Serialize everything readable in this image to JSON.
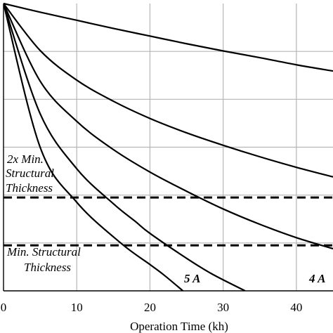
{
  "chart_data": {
    "type": "line",
    "title": "",
    "xlabel": "Operation Time (kh)",
    "ylabel": "",
    "xlim": [
      0,
      45
    ],
    "ylim": [
      0,
      6
    ],
    "x_ticks": [
      0,
      10,
      20,
      30,
      40
    ],
    "x_tick_labels": [
      "0",
      "10",
      "20",
      "30",
      "40"
    ],
    "grid": true,
    "series": [
      {
        "values": [
          [
            0,
            6.0
          ],
          [
            5,
            5.82
          ],
          [
            10,
            5.65
          ],
          [
            15,
            5.48
          ],
          [
            20,
            5.32
          ],
          [
            25,
            5.16
          ],
          [
            30,
            5.01
          ],
          [
            35,
            4.87
          ],
          [
            40,
            4.72
          ],
          [
            45,
            4.59
          ]
        ]
      },
      {
        "values": [
          [
            0,
            6.0
          ],
          [
            5,
            5.02
          ],
          [
            10,
            4.4
          ],
          [
            15,
            3.96
          ],
          [
            20,
            3.6
          ],
          [
            25,
            3.3
          ],
          [
            30,
            3.04
          ],
          [
            35,
            2.8
          ],
          [
            40,
            2.58
          ],
          [
            45,
            2.38
          ]
        ]
      },
      {
        "values": [
          [
            0,
            6.0
          ],
          [
            5,
            4.38
          ],
          [
            10,
            3.54
          ],
          [
            15,
            2.95
          ],
          [
            20,
            2.48
          ],
          [
            25,
            2.08
          ],
          [
            30,
            1.71
          ],
          [
            35,
            1.39
          ],
          [
            40,
            1.11
          ],
          [
            45,
            0.88
          ]
        ]
      },
      {
        "values": [
          [
            0,
            6.0
          ],
          [
            5,
            3.7
          ],
          [
            10,
            2.55
          ],
          [
            15,
            1.82
          ],
          [
            18,
            1.45
          ],
          [
            20,
            1.2
          ],
          [
            25,
            0.68
          ],
          [
            28.5,
            0.35
          ],
          [
            33,
            0.0
          ]
        ]
      },
      {
        "values": [
          [
            0,
            6.0
          ],
          [
            5,
            3.0
          ],
          [
            10,
            1.85
          ],
          [
            16,
            1.0
          ],
          [
            20,
            0.55
          ],
          [
            22,
            0.32
          ],
          [
            24.5,
            0.0
          ]
        ]
      }
    ],
    "reference_lines": [
      {
        "y": 1.95,
        "style": "dashed"
      },
      {
        "y": 0.95,
        "style": "dashed"
      }
    ],
    "annotations": [
      {
        "id": "two_x_line1",
        "text": "2x Min."
      },
      {
        "id": "two_x_line2",
        "text": "Structural"
      },
      {
        "id": "two_x_line3",
        "text": "Thickness"
      },
      {
        "id": "min_line1",
        "text": "Min. Structural"
      },
      {
        "id": "min_line2",
        "text": "Thickness"
      },
      {
        "id": "label_5a",
        "text": "5 A"
      },
      {
        "id": "label_4a",
        "text": "4 A"
      }
    ]
  }
}
